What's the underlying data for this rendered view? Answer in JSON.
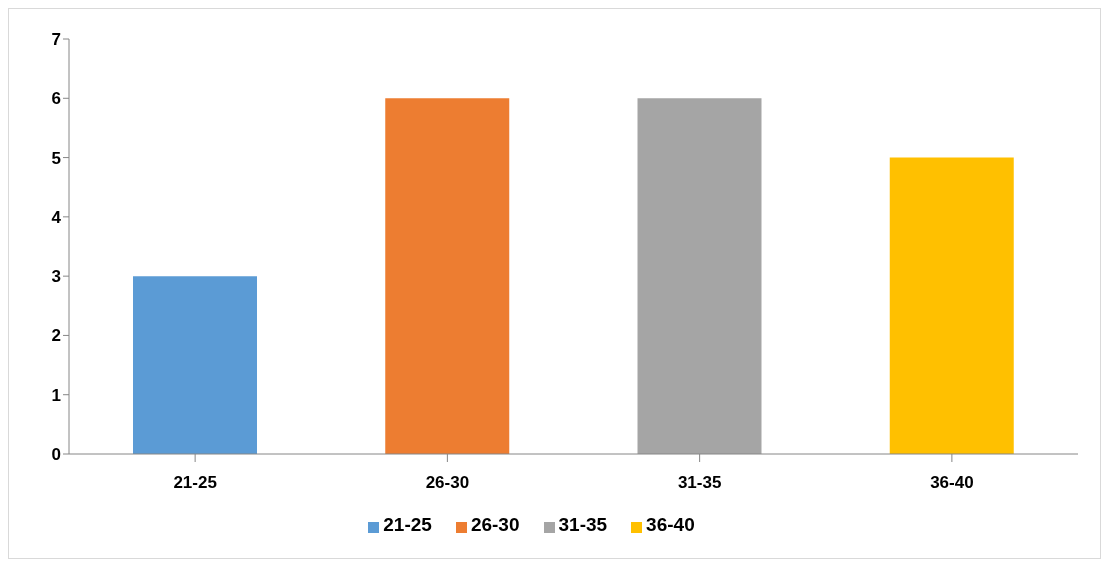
{
  "chart_data": {
    "type": "bar",
    "categories": [
      "21-25",
      "26-30",
      "31-35",
      "36-40"
    ],
    "stacked": true,
    "series": [
      {
        "name": "21-25",
        "color": "#5b9bd5",
        "values": [
          3,
          null,
          null,
          null
        ]
      },
      {
        "name": "26-30",
        "color": "#ed7d31",
        "values": [
          null,
          6,
          null,
          null
        ]
      },
      {
        "name": "31-35",
        "color": "#a5a5a5",
        "values": [
          null,
          null,
          6,
          null
        ]
      },
      {
        "name": "36-40",
        "color": "#ffc000",
        "values": [
          null,
          null,
          null,
          5
        ]
      }
    ],
    "ylim": [
      0,
      7
    ],
    "yticks": [
      0,
      1,
      2,
      3,
      4,
      5,
      6,
      7
    ],
    "grid": false,
    "legend": "bottom"
  }
}
